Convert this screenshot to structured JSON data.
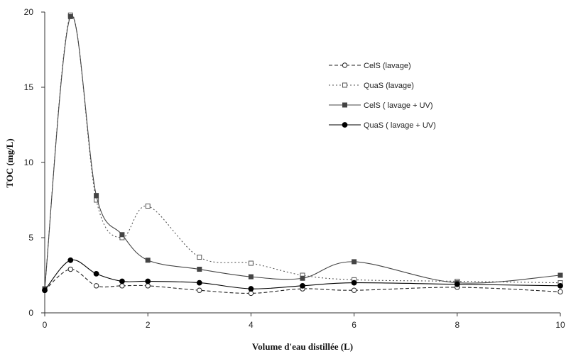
{
  "chart_data": {
    "type": "line",
    "xlabel": "Volume d'eau distillée (L)",
    "ylabel": "TOC (mg/L)",
    "xlim": [
      0,
      10
    ],
    "ylim": [
      0,
      20
    ],
    "x_ticks": [
      "0",
      "2",
      "4",
      "6",
      "8",
      "10"
    ],
    "y_ticks": [
      "0",
      "5",
      "10",
      "15",
      "20"
    ],
    "grid": false,
    "legend_position": "right",
    "series": [
      {
        "name": "CelS (lavage)",
        "line": "dashed",
        "marker": "open-circle",
        "color": "#222222",
        "x": [
          0,
          0.5,
          1,
          1.5,
          2,
          3,
          4,
          5,
          6,
          8,
          10
        ],
        "y": [
          1.5,
          2.9,
          1.8,
          1.8,
          1.8,
          1.5,
          1.3,
          1.6,
          1.5,
          1.7,
          1.4
        ]
      },
      {
        "name": "QuaS (lavage)",
        "line": "dotted",
        "marker": "open-square",
        "color": "#555555",
        "x": [
          0,
          0.5,
          1,
          1.5,
          2,
          3,
          4,
          5,
          6,
          8,
          10
        ],
        "y": [
          1.6,
          19.8,
          7.5,
          5.0,
          7.1,
          3.7,
          3.3,
          2.5,
          2.2,
          2.1,
          2.0
        ]
      },
      {
        "name": "CelS ( lavage + UV)",
        "line": "solid",
        "marker": "filled-square",
        "color": "#444444",
        "x": [
          0,
          0.5,
          1,
          1.5,
          2,
          3,
          4,
          5,
          6,
          8,
          10
        ],
        "y": [
          1.6,
          19.7,
          7.8,
          5.2,
          3.5,
          2.9,
          2.4,
          2.3,
          3.4,
          2.0,
          2.5
        ]
      },
      {
        "name": "QuaS ( lavage + UV)",
        "line": "solid",
        "marker": "filled-circle",
        "color": "#000000",
        "x": [
          0,
          0.5,
          1,
          1.5,
          2,
          3,
          4,
          5,
          6,
          8,
          10
        ],
        "y": [
          1.5,
          3.5,
          2.6,
          2.1,
          2.1,
          2.0,
          1.6,
          1.8,
          2.0,
          1.9,
          1.8
        ]
      }
    ]
  }
}
